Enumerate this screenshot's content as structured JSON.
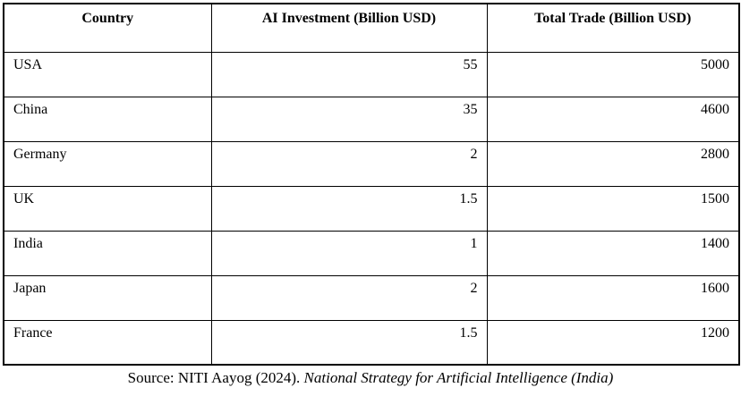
{
  "table": {
    "columns": [
      "Country",
      "AI Investment (Billion USD)",
      "Total Trade (Billion USD)"
    ],
    "rows": [
      {
        "country": "USA",
        "ai_investment": "55",
        "total_trade": "5000"
      },
      {
        "country": "China",
        "ai_investment": "35",
        "total_trade": "4600"
      },
      {
        "country": "Germany",
        "ai_investment": "2",
        "total_trade": "2800"
      },
      {
        "country": "UK",
        "ai_investment": "1.5",
        "total_trade": "1500"
      },
      {
        "country": "India",
        "ai_investment": "1",
        "total_trade": "1400"
      },
      {
        "country": "Japan",
        "ai_investment": "2",
        "total_trade": "1600"
      },
      {
        "country": "France",
        "ai_investment": "1.5",
        "total_trade": "1200"
      }
    ]
  },
  "footer": {
    "source_regular": "Source: NITI Aayog (2024). ",
    "source_italic": "National Strategy for Artificial Intelligence (India)"
  },
  "colors": {
    "border": "#000000",
    "text": "#000000",
    "background": "#ffffff"
  },
  "chart_data": {
    "type": "table",
    "title": "",
    "categories": [
      "USA",
      "China",
      "Germany",
      "UK",
      "India",
      "Japan",
      "France"
    ],
    "series": [
      {
        "name": "AI Investment (Billion USD)",
        "values": [
          55,
          35,
          2,
          1.5,
          1,
          2,
          1.5
        ]
      },
      {
        "name": "Total Trade (Billion USD)",
        "values": [
          5000,
          4600,
          2800,
          1500,
          1400,
          1600,
          1200
        ]
      }
    ]
  }
}
